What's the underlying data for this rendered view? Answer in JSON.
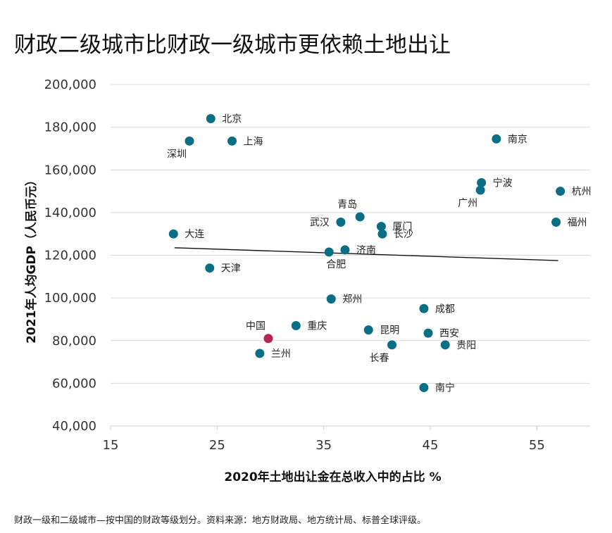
{
  "title": "财政二级城市比财政一级城市更依赖土地出让",
  "footnote": "财政一级和二级城市—按中国的财政等级划分。资料来源：地方财政局、地方统计局、标普全球评级。",
  "colors": {
    "point": "#0a6e85",
    "highlight": "#b5255a",
    "trend": "#111111",
    "grid": "#d9d9d9"
  },
  "chart_data": {
    "type": "scatter",
    "title": "财政二级城市比财政一级城市更依赖土地出让",
    "xlabel": "2020年土地出让金在总收入中的占比 %",
    "ylabel": "2021年人均GDP（人民币元）",
    "xlim": [
      15,
      60
    ],
    "ylim": [
      40000,
      200000
    ],
    "xticks": [
      15,
      25,
      35,
      45,
      55
    ],
    "yticks": [
      40000,
      60000,
      80000,
      100000,
      120000,
      140000,
      160000,
      180000,
      200000
    ],
    "xtick_labels": [
      "15",
      "25",
      "35",
      "45",
      "55"
    ],
    "ytick_labels": [
      "40,000",
      "60,000",
      "80,000",
      "100,000",
      "120,000",
      "140,000",
      "160,000",
      "180,000",
      "200,000"
    ],
    "grid": "horizontal",
    "trendline": {
      "x": [
        21,
        57
      ],
      "y": [
        123500,
        117500
      ]
    },
    "points": [
      {
        "name": "北京",
        "x": 24.4,
        "y": 184000,
        "label_pos": "right"
      },
      {
        "name": "深圳",
        "x": 22.4,
        "y": 173500,
        "label_pos": "below-left"
      },
      {
        "name": "上海",
        "x": 26.4,
        "y": 173500,
        "label_pos": "right"
      },
      {
        "name": "南京",
        "x": 51.2,
        "y": 174500,
        "label_pos": "right"
      },
      {
        "name": "宁波",
        "x": 49.8,
        "y": 154000,
        "label_pos": "right"
      },
      {
        "name": "广州",
        "x": 49.7,
        "y": 150500,
        "label_pos": "below-left"
      },
      {
        "name": "杭州",
        "x": 57.2,
        "y": 150000,
        "label_pos": "right"
      },
      {
        "name": "福州",
        "x": 56.8,
        "y": 135500,
        "label_pos": "right"
      },
      {
        "name": "青岛",
        "x": 38.4,
        "y": 138000,
        "label_pos": "above-left"
      },
      {
        "name": "武汉",
        "x": 36.6,
        "y": 135500,
        "label_pos": "left"
      },
      {
        "name": "厦门",
        "x": 40.4,
        "y": 133500,
        "label_pos": "right"
      },
      {
        "name": "长沙",
        "x": 40.5,
        "y": 130000,
        "label_pos": "right"
      },
      {
        "name": "大连",
        "x": 20.9,
        "y": 130000,
        "label_pos": "right"
      },
      {
        "name": "济南",
        "x": 37.0,
        "y": 122500,
        "label_pos": "right"
      },
      {
        "name": "合肥",
        "x": 35.5,
        "y": 121500,
        "label_pos": "below"
      },
      {
        "name": "天津",
        "x": 24.3,
        "y": 114000,
        "label_pos": "right"
      },
      {
        "name": "郑州",
        "x": 35.7,
        "y": 99500,
        "label_pos": "right"
      },
      {
        "name": "成都",
        "x": 44.4,
        "y": 95000,
        "label_pos": "right"
      },
      {
        "name": "中国",
        "x": 29.8,
        "y": 81000,
        "label_pos": "above-left",
        "highlight": true
      },
      {
        "name": "重庆",
        "x": 32.4,
        "y": 87000,
        "label_pos": "right"
      },
      {
        "name": "昆明",
        "x": 39.2,
        "y": 85000,
        "label_pos": "right"
      },
      {
        "name": "西安",
        "x": 44.8,
        "y": 83500,
        "label_pos": "right"
      },
      {
        "name": "贵阳",
        "x": 46.4,
        "y": 78000,
        "label_pos": "right"
      },
      {
        "name": "长春",
        "x": 41.4,
        "y": 78000,
        "label_pos": "below-left"
      },
      {
        "name": "兰州",
        "x": 29.0,
        "y": 74000,
        "label_pos": "right"
      },
      {
        "name": "南宁",
        "x": 44.4,
        "y": 58000,
        "label_pos": "right"
      }
    ]
  }
}
